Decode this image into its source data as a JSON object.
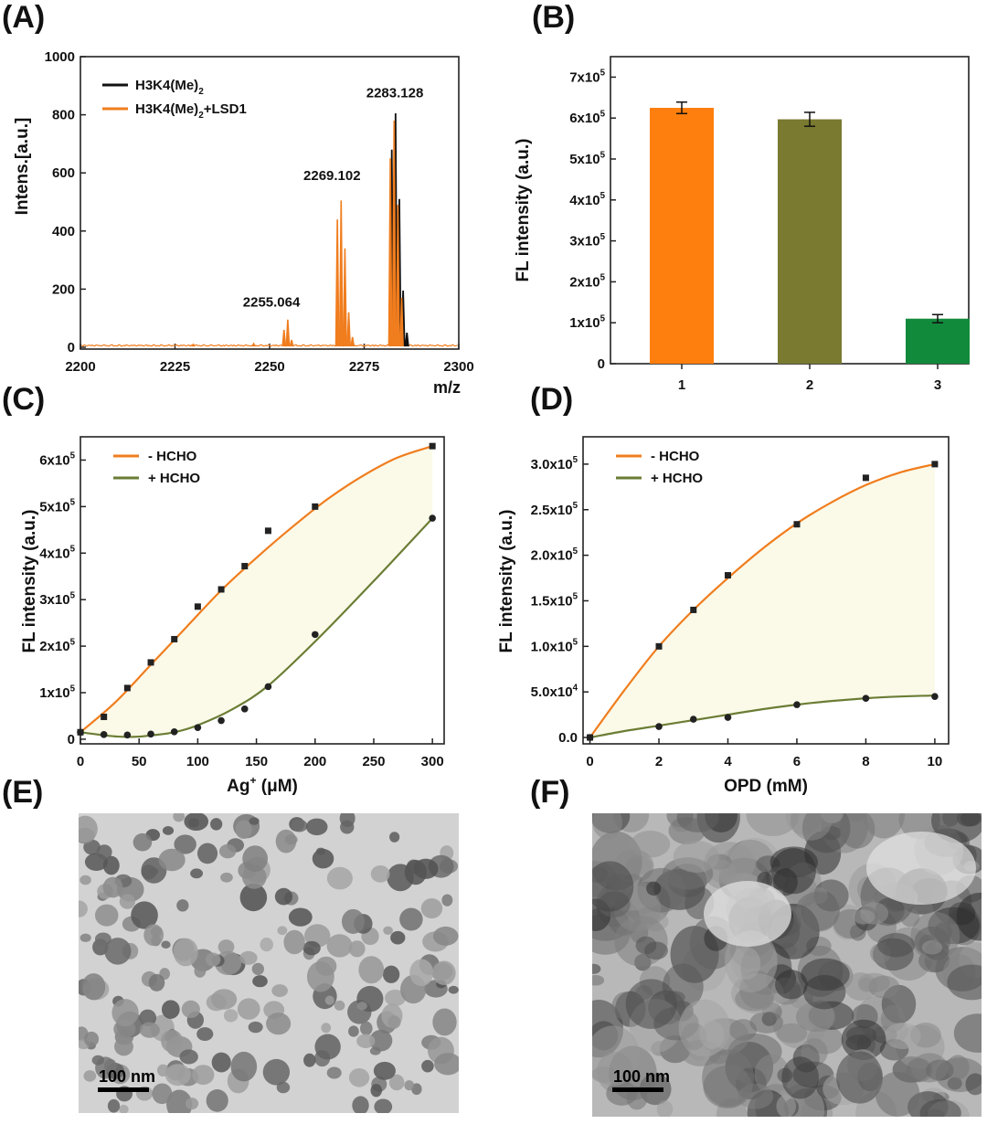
{
  "panels": {
    "A": "(A)",
    "B": "(B)",
    "C": "(C)",
    "D": "(D)",
    "E": "(E)",
    "F": "(F)"
  },
  "colors": {
    "orange": "#f07d1e",
    "olive": "#7a7a30",
    "green": "#128a3c",
    "olive_line": "#6b7d35",
    "black": "#111111",
    "fill": "#fbfae8"
  },
  "chart_data": [
    {
      "id": "A",
      "type": "line",
      "xlabel": "m/z",
      "ylabel": "Intens.[a.u.]",
      "xlim": [
        2200,
        2300
      ],
      "ylim": [
        0,
        1000
      ],
      "xticks": [
        2200,
        2225,
        2250,
        2275,
        2300
      ],
      "yticks": [
        0,
        200,
        400,
        600,
        800,
        1000
      ],
      "legend_position": "top-left",
      "series": [
        {
          "name": "H3K4(Me)2",
          "legend_main": "H3K4(Me)",
          "legend_sub": "2",
          "legend_suffix": "",
          "color": "#111111",
          "peaks": [
            {
              "x": 2282.1,
              "y": 680
            },
            {
              "x": 2283.1,
              "y": 805
            },
            {
              "x": 2284.1,
              "y": 510
            },
            {
              "x": 2285.1,
              "y": 195
            },
            {
              "x": 2286.1,
              "y": 50
            }
          ]
        },
        {
          "name": "H3K4(Me)2+LSD1",
          "legend_main": "H3K4(Me)",
          "legend_sub": "2",
          "legend_suffix": "+LSD1",
          "color": "#f07d1e",
          "peaks": [
            {
              "x": 2230.0,
              "y": 10
            },
            {
              "x": 2246.0,
              "y": 12
            },
            {
              "x": 2254.0,
              "y": 60
            },
            {
              "x": 2255.0,
              "y": 95
            },
            {
              "x": 2256.0,
              "y": 25
            },
            {
              "x": 2268.1,
              "y": 440
            },
            {
              "x": 2269.1,
              "y": 505
            },
            {
              "x": 2270.1,
              "y": 340
            },
            {
              "x": 2271.1,
              "y": 120
            },
            {
              "x": 2272.1,
              "y": 35
            },
            {
              "x": 2282.1,
              "y": 650
            },
            {
              "x": 2283.1,
              "y": 780
            },
            {
              "x": 2284.1,
              "y": 490
            },
            {
              "x": 2285.1,
              "y": 170
            }
          ]
        }
      ],
      "annotations": [
        {
          "text": "2283.128",
          "x": 2283.1,
          "y": 860
        },
        {
          "text": "2269.102",
          "x": 2266.5,
          "y": 575
        },
        {
          "text": "2255.064",
          "x": 2250.5,
          "y": 140
        }
      ]
    },
    {
      "id": "B",
      "type": "bar",
      "ylabel": "FL intensity (a.u.)",
      "categories": [
        "1",
        "2",
        "3"
      ],
      "values": [
        625000,
        597000,
        110000
      ],
      "errors": [
        14000,
        17000,
        10000
      ],
      "colors": [
        "#ff7f0e",
        "#7a7a30",
        "#128a3c"
      ],
      "ylim": [
        0,
        750000
      ],
      "yticks": [
        {
          "value": 0,
          "base": "0",
          "exp": ""
        },
        {
          "value": 100000,
          "base": "1x10",
          "exp": "5"
        },
        {
          "value": 200000,
          "base": "2x10",
          "exp": "5"
        },
        {
          "value": 300000,
          "base": "3x10",
          "exp": "5"
        },
        {
          "value": 400000,
          "base": "4x10",
          "exp": "5"
        },
        {
          "value": 500000,
          "base": "5x10",
          "exp": "5"
        },
        {
          "value": 600000,
          "base": "6x10",
          "exp": "5"
        },
        {
          "value": 700000,
          "base": "7x10",
          "exp": "5"
        }
      ]
    },
    {
      "id": "C",
      "type": "scatter",
      "xlabel_main": "Ag",
      "xlabel_sup": "+",
      "xlabel_unit": " (μM)",
      "ylabel": "FL intensity (a.u.)",
      "xlim": [
        0,
        310
      ],
      "ylim": [
        -10000,
        650000
      ],
      "xticks": [
        0,
        50,
        100,
        150,
        200,
        250,
        300
      ],
      "yticks": [
        {
          "value": 0,
          "base": "0",
          "exp": ""
        },
        {
          "value": 100000,
          "base": "1x10",
          "exp": "5"
        },
        {
          "value": 200000,
          "base": "2x10",
          "exp": "5"
        },
        {
          "value": 300000,
          "base": "3x10",
          "exp": "5"
        },
        {
          "value": 400000,
          "base": "4x10",
          "exp": "5"
        },
        {
          "value": 500000,
          "base": "5x10",
          "exp": "5"
        },
        {
          "value": 600000,
          "base": "6x10",
          "exp": "5"
        }
      ],
      "legend_position": "top-left",
      "series": [
        {
          "name": "- HCHO",
          "color": "#f07d1e",
          "x": [
            0,
            20,
            40,
            60,
            80,
            100,
            120,
            140,
            160,
            200,
            300
          ],
          "y": [
            15000,
            48000,
            110000,
            165000,
            215000,
            285000,
            322000,
            372000,
            448000,
            500000,
            630000
          ],
          "curve_x": [
            0,
            30,
            60,
            90,
            120,
            150,
            180,
            210,
            240,
            270,
            300
          ],
          "curve_y": [
            15000,
            80000,
            160000,
            240000,
            320000,
            390000,
            455000,
            515000,
            565000,
            605000,
            630000
          ]
        },
        {
          "name": "+ HCHO",
          "color": "#6b7d35",
          "x": [
            0,
            20,
            40,
            60,
            80,
            100,
            120,
            140,
            160,
            200,
            300
          ],
          "y": [
            15000,
            10000,
            9000,
            11000,
            16000,
            25000,
            40000,
            65000,
            113000,
            225000,
            475000
          ],
          "curve_x": [
            0,
            15,
            30,
            45,
            60,
            80,
            100,
            130,
            160,
            200,
            250,
            300
          ],
          "curve_y": [
            15000,
            10000,
            6000,
            5000,
            8000,
            15000,
            30000,
            65000,
            115000,
            210000,
            340000,
            475000
          ]
        }
      ]
    },
    {
      "id": "D",
      "type": "scatter",
      "xlabel": "OPD (mM)",
      "ylabel": "FL intensity (a.u.)",
      "xlim": [
        -0.2,
        10.4
      ],
      "ylim": [
        -7000,
        330000
      ],
      "xticks": [
        0,
        2,
        4,
        6,
        8,
        10
      ],
      "yticks": [
        {
          "value": 0,
          "base": "0.0",
          "exp": ""
        },
        {
          "value": 50000,
          "base": "5.0x10",
          "exp": "4"
        },
        {
          "value": 100000,
          "base": "1.0x10",
          "exp": "5"
        },
        {
          "value": 150000,
          "base": "1.5x10",
          "exp": "5"
        },
        {
          "value": 200000,
          "base": "2.0x10",
          "exp": "5"
        },
        {
          "value": 250000,
          "base": "2.5x10",
          "exp": "5"
        },
        {
          "value": 300000,
          "base": "3.0x10",
          "exp": "5"
        }
      ],
      "legend_position": "top-left",
      "series": [
        {
          "name": "- HCHO",
          "color": "#f07d1e",
          "x": [
            0,
            2,
            3,
            4,
            6,
            8,
            10
          ],
          "y": [
            0,
            100000,
            140000,
            178000,
            234000,
            285000,
            300000
          ],
          "curve_x": [
            0,
            1,
            2,
            3,
            4,
            5,
            6,
            7,
            8,
            9,
            10
          ],
          "curve_y": [
            0,
            52000,
            100000,
            140000,
            175000,
            207000,
            235000,
            258000,
            277000,
            291000,
            300000
          ]
        },
        {
          "name": "+ HCHO",
          "color": "#6b7d35",
          "x": [
            0,
            2,
            3,
            4,
            6,
            8,
            10
          ],
          "y": [
            0,
            12000,
            20000,
            22000,
            36000,
            43000,
            45000
          ],
          "curve_x": [
            0,
            1,
            2,
            3,
            4,
            5,
            6,
            7,
            8,
            9,
            10
          ],
          "curve_y": [
            0,
            7000,
            13000,
            19000,
            25000,
            31000,
            36000,
            40000,
            43000,
            45000,
            46000
          ]
        }
      ]
    }
  ],
  "tem": {
    "E": {
      "scale_label": "100 nm"
    },
    "F": {
      "scale_label": "100 nm"
    }
  }
}
